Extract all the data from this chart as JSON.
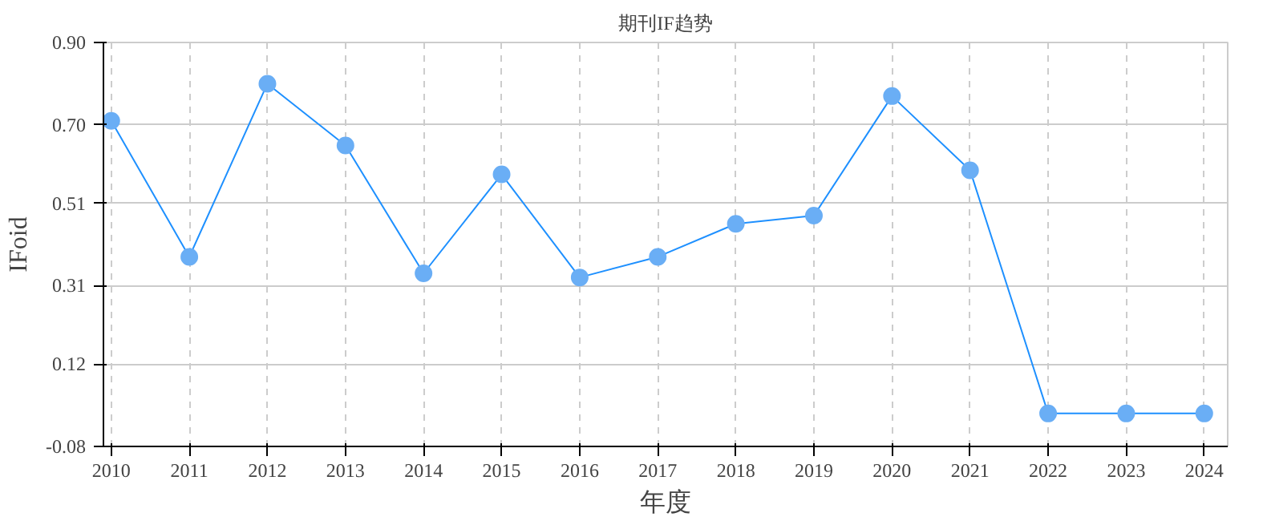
{
  "chart_data": {
    "type": "line",
    "title": "期刊IF趋势",
    "xlabel": "年度",
    "ylabel": "IFoid",
    "x": [
      2010,
      2011,
      2012,
      2013,
      2014,
      2015,
      2016,
      2017,
      2018,
      2019,
      2020,
      2021,
      2022,
      2023,
      2024
    ],
    "series": [
      {
        "color": "#1e90ff",
        "values": [
          0.71,
          0.38,
          0.8,
          0.65,
          0.34,
          0.58,
          0.33,
          0.38,
          0.46,
          0.48,
          0.77,
          0.59,
          0.0,
          0.0,
          0.0
        ]
      }
    ],
    "xlim": [
      2009.9,
      2024.3
    ],
    "xticks": [
      2010,
      2011,
      2012,
      2013,
      2014,
      2015,
      2016,
      2017,
      2018,
      2019,
      2020,
      2021,
      2022,
      2023,
      2024
    ],
    "ylim": [
      -0.08,
      0.9
    ],
    "yticks": [
      -0.08,
      0.12,
      0.31,
      0.51,
      {
        "value": 0.7,
        "label": "0.70"
      },
      {
        "value": 0.9,
        "label": "0.90"
      }
    ],
    "grid": true,
    "marker": "circle",
    "line_style": "solid"
  }
}
